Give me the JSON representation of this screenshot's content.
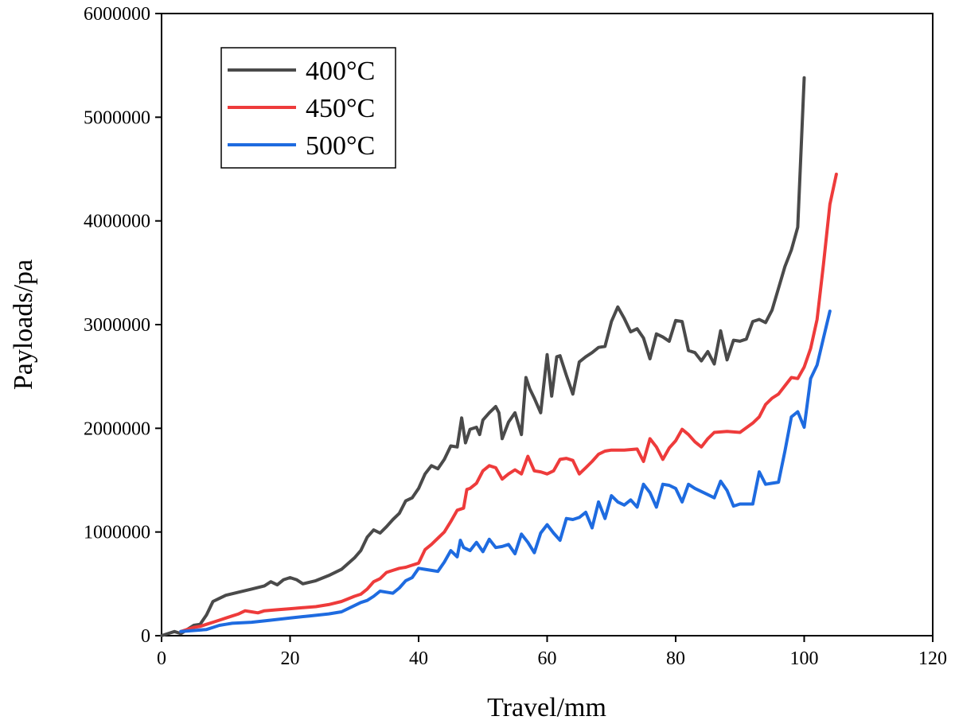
{
  "chart_data": {
    "type": "line",
    "xlabel": "Travel/mm",
    "ylabel": "Payloads/pa",
    "xlim": [
      0,
      120
    ],
    "ylim": [
      0,
      6000000
    ],
    "xticks": [
      0,
      20,
      40,
      60,
      80,
      100,
      120
    ],
    "yticks": [
      0,
      1000000,
      2000000,
      3000000,
      4000000,
      5000000,
      6000000
    ],
    "xtick_labels": [
      "0",
      "20",
      "40",
      "60",
      "80",
      "100",
      "120"
    ],
    "ytick_labels": [
      "0",
      "1000000",
      "2000000",
      "3000000",
      "4000000",
      "5000000",
      "6000000"
    ],
    "grid": false,
    "legend_position": "top-left",
    "series": [
      {
        "name": "400°C",
        "color": "#4a4a4a",
        "points": [
          [
            0,
            0
          ],
          [
            1,
            20000
          ],
          [
            2,
            40000
          ],
          [
            3,
            20000
          ],
          [
            4,
            60000
          ],
          [
            5,
            100000
          ],
          [
            6,
            110000
          ],
          [
            7,
            200000
          ],
          [
            8,
            330000
          ],
          [
            9,
            360000
          ],
          [
            10,
            390000
          ],
          [
            12,
            420000
          ],
          [
            14,
            450000
          ],
          [
            16,
            480000
          ],
          [
            17,
            520000
          ],
          [
            18,
            490000
          ],
          [
            19,
            540000
          ],
          [
            20,
            560000
          ],
          [
            21,
            540000
          ],
          [
            22,
            500000
          ],
          [
            24,
            530000
          ],
          [
            26,
            580000
          ],
          [
            28,
            640000
          ],
          [
            30,
            750000
          ],
          [
            31,
            820000
          ],
          [
            32,
            950000
          ],
          [
            33,
            1020000
          ],
          [
            34,
            990000
          ],
          [
            35,
            1050000
          ],
          [
            36,
            1120000
          ],
          [
            37,
            1180000
          ],
          [
            38,
            1300000
          ],
          [
            39,
            1330000
          ],
          [
            40,
            1420000
          ],
          [
            41,
            1560000
          ],
          [
            42,
            1640000
          ],
          [
            43,
            1610000
          ],
          [
            44,
            1700000
          ],
          [
            45,
            1830000
          ],
          [
            46,
            1820000
          ],
          [
            46.7,
            2100000
          ],
          [
            47.3,
            1860000
          ],
          [
            48,
            1990000
          ],
          [
            49,
            2010000
          ],
          [
            49.5,
            1940000
          ],
          [
            50,
            2080000
          ],
          [
            51,
            2150000
          ],
          [
            52,
            2210000
          ],
          [
            52.5,
            2150000
          ],
          [
            53,
            1900000
          ],
          [
            54,
            2060000
          ],
          [
            55,
            2150000
          ],
          [
            56,
            1940000
          ],
          [
            56.7,
            2490000
          ],
          [
            57.3,
            2380000
          ],
          [
            58,
            2290000
          ],
          [
            59,
            2150000
          ],
          [
            60,
            2710000
          ],
          [
            60.7,
            2310000
          ],
          [
            61.5,
            2690000
          ],
          [
            62,
            2700000
          ],
          [
            63,
            2510000
          ],
          [
            64,
            2330000
          ],
          [
            65,
            2640000
          ],
          [
            66,
            2690000
          ],
          [
            67,
            2730000
          ],
          [
            68,
            2780000
          ],
          [
            69,
            2790000
          ],
          [
            70,
            3030000
          ],
          [
            71,
            3170000
          ],
          [
            72,
            3060000
          ],
          [
            73,
            2930000
          ],
          [
            74,
            2960000
          ],
          [
            75,
            2870000
          ],
          [
            76,
            2670000
          ],
          [
            77,
            2910000
          ],
          [
            78,
            2880000
          ],
          [
            79,
            2840000
          ],
          [
            80,
            3040000
          ],
          [
            81,
            3030000
          ],
          [
            82,
            2750000
          ],
          [
            83,
            2730000
          ],
          [
            84,
            2650000
          ],
          [
            85,
            2740000
          ],
          [
            86,
            2620000
          ],
          [
            87,
            2940000
          ],
          [
            88,
            2660000
          ],
          [
            89,
            2850000
          ],
          [
            90,
            2840000
          ],
          [
            91,
            2860000
          ],
          [
            92,
            3030000
          ],
          [
            93,
            3050000
          ],
          [
            94,
            3020000
          ],
          [
            95,
            3140000
          ],
          [
            96,
            3350000
          ],
          [
            97,
            3560000
          ],
          [
            98,
            3720000
          ],
          [
            99,
            3940000
          ],
          [
            100,
            5380000
          ]
        ]
      },
      {
        "name": "450°C",
        "color": "#ee3b3b",
        "points": [
          [
            3,
            40000
          ],
          [
            4,
            60000
          ],
          [
            5,
            80000
          ],
          [
            6,
            90000
          ],
          [
            7,
            110000
          ],
          [
            8,
            130000
          ],
          [
            9,
            150000
          ],
          [
            10,
            170000
          ],
          [
            11,
            190000
          ],
          [
            12,
            210000
          ],
          [
            13,
            240000
          ],
          [
            14,
            230000
          ],
          [
            15,
            220000
          ],
          [
            16,
            240000
          ],
          [
            18,
            250000
          ],
          [
            20,
            260000
          ],
          [
            22,
            270000
          ],
          [
            24,
            280000
          ],
          [
            26,
            300000
          ],
          [
            28,
            330000
          ],
          [
            30,
            380000
          ],
          [
            31,
            400000
          ],
          [
            32,
            450000
          ],
          [
            33,
            520000
          ],
          [
            34,
            550000
          ],
          [
            35,
            610000
          ],
          [
            36,
            630000
          ],
          [
            37,
            650000
          ],
          [
            38,
            660000
          ],
          [
            39,
            680000
          ],
          [
            40,
            700000
          ],
          [
            41,
            830000
          ],
          [
            42,
            880000
          ],
          [
            43,
            940000
          ],
          [
            44,
            1000000
          ],
          [
            45,
            1100000
          ],
          [
            46,
            1210000
          ],
          [
            47,
            1230000
          ],
          [
            47.5,
            1410000
          ],
          [
            48,
            1420000
          ],
          [
            49,
            1470000
          ],
          [
            50,
            1590000
          ],
          [
            51,
            1640000
          ],
          [
            52,
            1620000
          ],
          [
            53,
            1510000
          ],
          [
            54,
            1560000
          ],
          [
            55,
            1600000
          ],
          [
            56,
            1560000
          ],
          [
            57,
            1730000
          ],
          [
            58,
            1590000
          ],
          [
            59,
            1580000
          ],
          [
            60,
            1560000
          ],
          [
            61,
            1590000
          ],
          [
            62,
            1700000
          ],
          [
            63,
            1710000
          ],
          [
            64,
            1690000
          ],
          [
            65,
            1560000
          ],
          [
            66,
            1620000
          ],
          [
            67,
            1680000
          ],
          [
            68,
            1750000
          ],
          [
            69,
            1780000
          ],
          [
            70,
            1790000
          ],
          [
            72,
            1790000
          ],
          [
            74,
            1800000
          ],
          [
            75,
            1680000
          ],
          [
            76,
            1900000
          ],
          [
            77,
            1820000
          ],
          [
            78,
            1700000
          ],
          [
            79,
            1810000
          ],
          [
            80,
            1880000
          ],
          [
            81,
            1990000
          ],
          [
            82,
            1940000
          ],
          [
            83,
            1870000
          ],
          [
            84,
            1820000
          ],
          [
            85,
            1900000
          ],
          [
            86,
            1960000
          ],
          [
            88,
            1970000
          ],
          [
            90,
            1960000
          ],
          [
            92,
            2050000
          ],
          [
            93,
            2110000
          ],
          [
            94,
            2230000
          ],
          [
            95,
            2290000
          ],
          [
            96,
            2330000
          ],
          [
            97,
            2410000
          ],
          [
            98,
            2490000
          ],
          [
            99,
            2480000
          ],
          [
            100,
            2590000
          ],
          [
            101,
            2770000
          ],
          [
            102,
            3050000
          ],
          [
            103,
            3580000
          ],
          [
            104,
            4160000
          ],
          [
            105,
            4450000
          ]
        ]
      },
      {
        "name": "500°C",
        "color": "#1e6be0",
        "points": [
          [
            3,
            40000
          ],
          [
            5,
            50000
          ],
          [
            7,
            60000
          ],
          [
            8,
            80000
          ],
          [
            9,
            100000
          ],
          [
            10,
            110000
          ],
          [
            11,
            120000
          ],
          [
            14,
            130000
          ],
          [
            17,
            150000
          ],
          [
            20,
            170000
          ],
          [
            23,
            190000
          ],
          [
            26,
            210000
          ],
          [
            28,
            230000
          ],
          [
            30,
            290000
          ],
          [
            31,
            320000
          ],
          [
            32,
            340000
          ],
          [
            33,
            380000
          ],
          [
            34,
            430000
          ],
          [
            35,
            420000
          ],
          [
            36,
            410000
          ],
          [
            37,
            460000
          ],
          [
            38,
            530000
          ],
          [
            39,
            560000
          ],
          [
            40,
            650000
          ],
          [
            41,
            640000
          ],
          [
            42,
            630000
          ],
          [
            43,
            620000
          ],
          [
            44,
            710000
          ],
          [
            45,
            820000
          ],
          [
            46,
            760000
          ],
          [
            46.5,
            920000
          ],
          [
            47,
            850000
          ],
          [
            48,
            820000
          ],
          [
            49,
            900000
          ],
          [
            50,
            810000
          ],
          [
            51,
            930000
          ],
          [
            52,
            850000
          ],
          [
            53,
            860000
          ],
          [
            54,
            880000
          ],
          [
            55,
            790000
          ],
          [
            56,
            980000
          ],
          [
            57,
            900000
          ],
          [
            58,
            800000
          ],
          [
            59,
            990000
          ],
          [
            60,
            1070000
          ],
          [
            61,
            990000
          ],
          [
            62,
            920000
          ],
          [
            63,
            1130000
          ],
          [
            64,
            1120000
          ],
          [
            65,
            1140000
          ],
          [
            66,
            1190000
          ],
          [
            67,
            1040000
          ],
          [
            68,
            1290000
          ],
          [
            69,
            1130000
          ],
          [
            70,
            1350000
          ],
          [
            71,
            1290000
          ],
          [
            72,
            1260000
          ],
          [
            73,
            1310000
          ],
          [
            74,
            1240000
          ],
          [
            75,
            1460000
          ],
          [
            76,
            1380000
          ],
          [
            77,
            1240000
          ],
          [
            78,
            1460000
          ],
          [
            79,
            1450000
          ],
          [
            80,
            1420000
          ],
          [
            81,
            1290000
          ],
          [
            82,
            1460000
          ],
          [
            83,
            1420000
          ],
          [
            84,
            1390000
          ],
          [
            85,
            1360000
          ],
          [
            86,
            1330000
          ],
          [
            87,
            1490000
          ],
          [
            88,
            1400000
          ],
          [
            89,
            1250000
          ],
          [
            90,
            1270000
          ],
          [
            91,
            1270000
          ],
          [
            92,
            1270000
          ],
          [
            93,
            1580000
          ],
          [
            94,
            1460000
          ],
          [
            95,
            1470000
          ],
          [
            96,
            1480000
          ],
          [
            97,
            1780000
          ],
          [
            98,
            2110000
          ],
          [
            99,
            2160000
          ],
          [
            100,
            2010000
          ],
          [
            101,
            2480000
          ],
          [
            102,
            2610000
          ],
          [
            103,
            2870000
          ],
          [
            104,
            3130000
          ]
        ]
      }
    ]
  }
}
